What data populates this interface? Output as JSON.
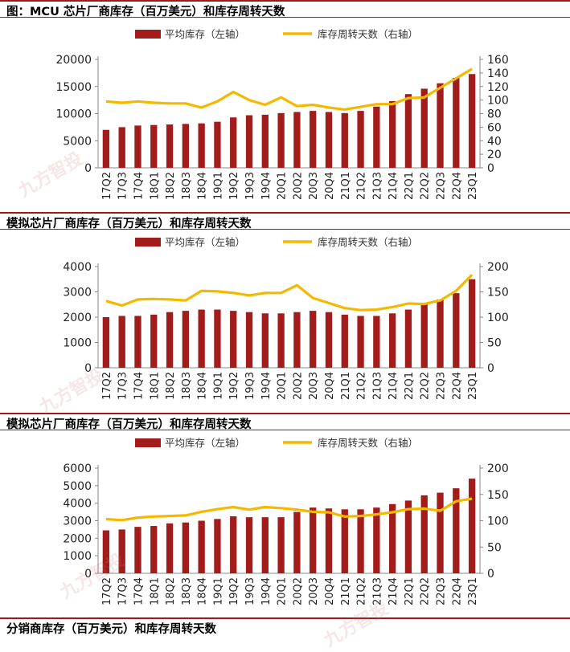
{
  "titles": {
    "top": "图：MCU 芯片厂商库存（百万美元）和库存周转天数",
    "t2": "模拟芯片厂商库存（百万美元）和库存周转天数",
    "t3": "模拟芯片厂商库存（百万美元）和库存周转天数",
    "bottom": "分销商库存（百万美元）和库存周转天数"
  },
  "watermark": "九方智投",
  "colors": {
    "bar": "#a31c1c",
    "line": "#f5b800",
    "frame": "#a01818"
  },
  "chart_data": [
    {
      "type": "bar",
      "categories": [
        "17Q2",
        "17Q3",
        "17Q4",
        "18Q1",
        "18Q2",
        "18Q3",
        "18Q4",
        "19Q1",
        "19Q2",
        "19Q3",
        "19Q4",
        "20Q1",
        "20Q2",
        "20Q3",
        "20Q4",
        "21Q1",
        "21Q2",
        "21Q3",
        "21Q4",
        "22Q1",
        "22Q2",
        "22Q3",
        "22Q4",
        "23Q1"
      ],
      "series": [
        {
          "name": "平均库存（左轴）",
          "type": "bar",
          "axis": "left",
          "values": [
            7000,
            7500,
            7800,
            7900,
            8000,
            8100,
            8200,
            8500,
            9300,
            9700,
            9800,
            10100,
            10300,
            10500,
            10300,
            10100,
            10500,
            11300,
            12300,
            13600,
            14600,
            15600,
            16600,
            17300
          ]
        },
        {
          "name": "库存周转天数（右轴）",
          "type": "line",
          "axis": "right",
          "values": [
            98,
            96,
            98,
            96,
            95,
            95,
            89,
            98,
            112,
            100,
            93,
            104,
            91,
            93,
            89,
            86,
            90,
            94,
            94,
            103,
            104,
            118,
            132,
            146
          ]
        }
      ],
      "yleft": {
        "min": 0,
        "max": 20000,
        "ticks": [
          "0",
          "5000",
          "10000",
          "15000",
          "20000"
        ]
      },
      "yright": {
        "min": 0,
        "max": 160,
        "ticks": [
          "0",
          "20",
          "40",
          "60",
          "80",
          "100",
          "120",
          "140",
          "160"
        ]
      },
      "legend": "top"
    },
    {
      "type": "bar",
      "categories": [
        "17Q2",
        "17Q3",
        "17Q4",
        "18Q1",
        "18Q2",
        "18Q3",
        "18Q4",
        "19Q1",
        "19Q2",
        "19Q3",
        "19Q4",
        "20Q1",
        "20Q2",
        "20Q3",
        "20Q4",
        "21Q1",
        "21Q2",
        "21Q3",
        "21Q4",
        "22Q1",
        "22Q2",
        "22Q3",
        "22Q4",
        "23Q1"
      ],
      "series": [
        {
          "name": "平均库存（左轴）",
          "type": "bar",
          "axis": "left",
          "values": [
            2000,
            2050,
            2050,
            2100,
            2200,
            2250,
            2300,
            2300,
            2250,
            2200,
            2150,
            2150,
            2200,
            2250,
            2200,
            2100,
            2050,
            2050,
            2150,
            2300,
            2500,
            2700,
            2950,
            3500
          ]
        },
        {
          "name": "库存周转天数（右轴）",
          "type": "line",
          "axis": "right",
          "values": [
            132,
            123,
            135,
            136,
            135,
            133,
            152,
            151,
            148,
            143,
            148,
            148,
            163,
            138,
            128,
            118,
            114,
            115,
            120,
            127,
            126,
            133,
            152,
            184
          ]
        }
      ],
      "yleft": {
        "min": 0,
        "max": 4000,
        "ticks": [
          "0",
          "1000",
          "2000",
          "3000",
          "4000"
        ]
      },
      "yright": {
        "min": 0,
        "max": 200,
        "ticks": [
          "0",
          "50",
          "100",
          "150",
          "200"
        ]
      },
      "legend": "top"
    },
    {
      "type": "bar",
      "categories": [
        "17Q2",
        "17Q3",
        "17Q4",
        "18Q1",
        "18Q2",
        "18Q3",
        "18Q4",
        "19Q1",
        "19Q2",
        "19Q3",
        "19Q4",
        "20Q1",
        "20Q2",
        "20Q3",
        "20Q4",
        "21Q1",
        "21Q2",
        "21Q3",
        "21Q4",
        "22Q1",
        "22Q2",
        "22Q3",
        "22Q4",
        "23Q1"
      ],
      "series": [
        {
          "name": "平均库存（左轴）",
          "type": "bar",
          "axis": "left",
          "values": [
            2450,
            2500,
            2650,
            2700,
            2850,
            2900,
            3000,
            3100,
            3250,
            3200,
            3200,
            3200,
            3500,
            3750,
            3700,
            3650,
            3650,
            3750,
            3950,
            4150,
            4450,
            4600,
            4850,
            5400
          ]
        },
        {
          "name": "库存周转天数（右轴）",
          "type": "line",
          "axis": "right",
          "values": [
            103,
            101,
            106,
            108,
            109,
            110,
            117,
            122,
            126,
            121,
            126,
            124,
            121,
            117,
            116,
            108,
            109,
            112,
            116,
            122,
            123,
            119,
            137,
            142
          ]
        }
      ],
      "yleft": {
        "min": 0,
        "max": 6000,
        "ticks": [
          "0",
          "1000",
          "2000",
          "3000",
          "4000",
          "5000",
          "6000"
        ]
      },
      "yright": {
        "min": 0,
        "max": 200,
        "ticks": [
          "0",
          "50",
          "100",
          "150",
          "200"
        ]
      },
      "legend": "top"
    }
  ]
}
